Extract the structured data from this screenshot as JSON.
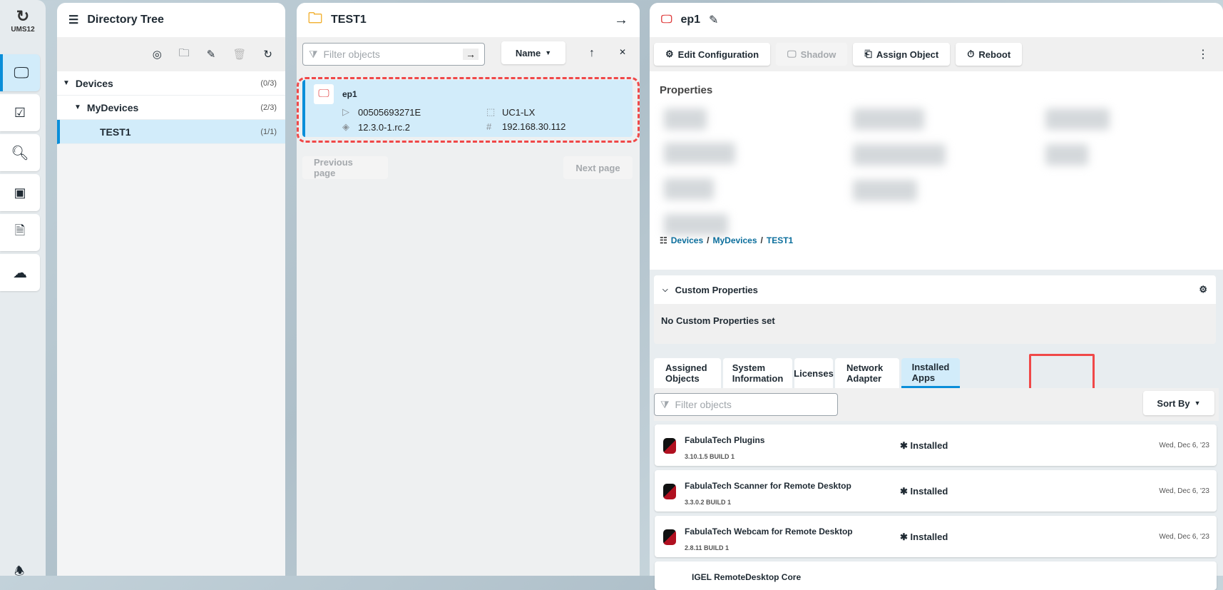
{
  "rail": {
    "logo_text": "UMS12",
    "items": [
      {
        "icon": "monitor-icon",
        "active": true
      },
      {
        "icon": "checklist-icon"
      },
      {
        "icon": "search-icon"
      },
      {
        "icon": "apps-icon"
      },
      {
        "icon": "documents-icon"
      },
      {
        "icon": "cloud-icon"
      }
    ]
  },
  "tree": {
    "title": "Directory Tree",
    "rows": [
      {
        "label": "Devices",
        "count": "(0/3)"
      },
      {
        "label": "MyDevices",
        "count": "(2/3)"
      },
      {
        "label": "TEST1",
        "count": "(1/1)"
      }
    ]
  },
  "list": {
    "title": "TEST1",
    "filter_placeholder": "Filter objects",
    "sort_label": "Name",
    "device": {
      "name": "ep1",
      "mac": "00505693271E",
      "product": "UC1-LX",
      "version": "12.3.0-1.rc.2",
      "ip": "192.168.30.112"
    },
    "prev": "Previous page",
    "next": "Next page"
  },
  "detail": {
    "title": "ep1",
    "toolbar": {
      "edit": "Edit Configuration",
      "shadow": "Shadow",
      "assign": "Assign Object",
      "reboot": "Reboot"
    },
    "properties_title": "Properties",
    "breadcrumb": [
      "Devices",
      "MyDevices",
      "TEST1"
    ],
    "custom_title": "Custom Properties",
    "custom_empty": "No Custom Properties set",
    "tabs": [
      "Assigned Objects",
      "System Information",
      "Licenses",
      "Network Adapter",
      "Installed Apps"
    ],
    "active_tab": "Installed Apps",
    "filter_placeholder": "Filter objects",
    "sort_by": "Sort By",
    "apps": [
      {
        "name": "FabulaTech Plugins",
        "version": "3.10.1.5 BUILD 1",
        "status": "Installed",
        "date": "Wed, Dec 6, '23"
      },
      {
        "name": "FabulaTech Scanner for Remote Desktop",
        "version": "3.3.0.2 BUILD 1",
        "status": "Installed",
        "date": "Wed, Dec 6, '23"
      },
      {
        "name": "FabulaTech Webcam for Remote Desktop",
        "version": "2.8.11 BUILD 1",
        "status": "Installed",
        "date": "Wed, Dec 6, '23"
      },
      {
        "name": "IGEL RemoteDesktop Core"
      }
    ]
  },
  "colors": {
    "accent": "#0a8ed9",
    "selected_bg": "#d2ecfa",
    "highlight": "#f04848",
    "link": "#0b6e9c"
  }
}
